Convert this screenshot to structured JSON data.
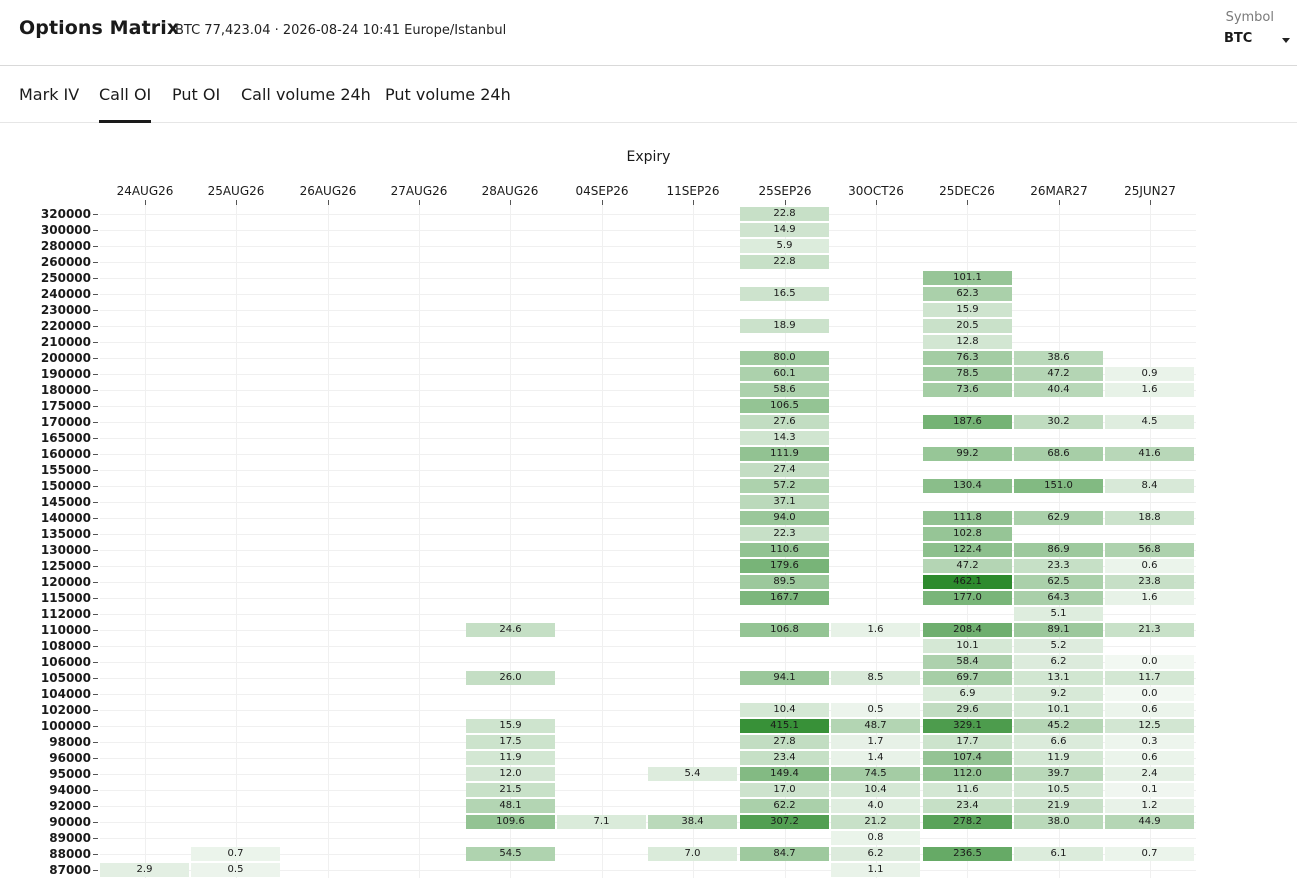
{
  "header": {
    "title": "Options Matrix",
    "subtitle": "BTC 77,423.04 · 2026-08-24 10:41 Europe/Istanbul",
    "symbol_label": "Symbol",
    "symbol_value": "BTC"
  },
  "tabs": [
    {
      "label": "Mark IV",
      "active": false
    },
    {
      "label": "Call OI",
      "active": true
    },
    {
      "label": "Put OI",
      "active": false
    },
    {
      "label": "Call volume 24h",
      "active": false
    },
    {
      "label": "Put volume 24h",
      "active": false
    }
  ],
  "chart_data": {
    "type": "heatmap",
    "xlabel": "Expiry",
    "x": [
      "24AUG26",
      "25AUG26",
      "26AUG26",
      "27AUG26",
      "28AUG26",
      "04SEP26",
      "11SEP26",
      "25SEP26",
      "30OCT26",
      "25DEC26",
      "26MAR27",
      "25JUN27"
    ],
    "y": [
      "320000",
      "300000",
      "280000",
      "260000",
      "250000",
      "240000",
      "230000",
      "220000",
      "210000",
      "200000",
      "190000",
      "180000",
      "175000",
      "170000",
      "165000",
      "160000",
      "155000",
      "150000",
      "145000",
      "140000",
      "135000",
      "130000",
      "125000",
      "120000",
      "115000",
      "112000",
      "110000",
      "108000",
      "106000",
      "105000",
      "104000",
      "102000",
      "100000",
      "98000",
      "96000",
      "95000",
      "94000",
      "92000",
      "90000",
      "89000",
      "88000",
      "87000"
    ],
    "values": [
      [
        null,
        null,
        null,
        null,
        null,
        null,
        null,
        "22.8",
        null,
        null,
        null,
        null
      ],
      [
        null,
        null,
        null,
        null,
        null,
        null,
        null,
        "14.9",
        null,
        null,
        null,
        null
      ],
      [
        null,
        null,
        null,
        null,
        null,
        null,
        null,
        "5.9",
        null,
        null,
        null,
        null
      ],
      [
        null,
        null,
        null,
        null,
        null,
        null,
        null,
        "22.8",
        null,
        null,
        null,
        null
      ],
      [
        null,
        null,
        null,
        null,
        null,
        null,
        null,
        null,
        null,
        "101.1",
        null,
        null
      ],
      [
        null,
        null,
        null,
        null,
        null,
        null,
        null,
        "16.5",
        null,
        "62.3",
        null,
        null
      ],
      [
        null,
        null,
        null,
        null,
        null,
        null,
        null,
        null,
        null,
        "15.9",
        null,
        null
      ],
      [
        null,
        null,
        null,
        null,
        null,
        null,
        null,
        "18.9",
        null,
        "20.5",
        null,
        null
      ],
      [
        null,
        null,
        null,
        null,
        null,
        null,
        null,
        null,
        null,
        "12.8",
        null,
        null
      ],
      [
        null,
        null,
        null,
        null,
        null,
        null,
        null,
        "80.0",
        null,
        "76.3",
        "38.6",
        null
      ],
      [
        null,
        null,
        null,
        null,
        null,
        null,
        null,
        "60.1",
        null,
        "78.5",
        "47.2",
        "0.9"
      ],
      [
        null,
        null,
        null,
        null,
        null,
        null,
        null,
        "58.6",
        null,
        "73.6",
        "40.4",
        "1.6"
      ],
      [
        null,
        null,
        null,
        null,
        null,
        null,
        null,
        "106.5",
        null,
        null,
        null,
        null
      ],
      [
        null,
        null,
        null,
        null,
        null,
        null,
        null,
        "27.6",
        null,
        "187.6",
        "30.2",
        "4.5"
      ],
      [
        null,
        null,
        null,
        null,
        null,
        null,
        null,
        "14.3",
        null,
        null,
        null,
        null
      ],
      [
        null,
        null,
        null,
        null,
        null,
        null,
        null,
        "111.9",
        null,
        "99.2",
        "68.6",
        "41.6"
      ],
      [
        null,
        null,
        null,
        null,
        null,
        null,
        null,
        "27.4",
        null,
        null,
        null,
        null
      ],
      [
        null,
        null,
        null,
        null,
        null,
        null,
        null,
        "57.2",
        null,
        "130.4",
        "151.0",
        "8.4"
      ],
      [
        null,
        null,
        null,
        null,
        null,
        null,
        null,
        "37.1",
        null,
        null,
        null,
        null
      ],
      [
        null,
        null,
        null,
        null,
        null,
        null,
        null,
        "94.0",
        null,
        "111.8",
        "62.9",
        "18.8"
      ],
      [
        null,
        null,
        null,
        null,
        null,
        null,
        null,
        "22.3",
        null,
        "102.8",
        null,
        null
      ],
      [
        null,
        null,
        null,
        null,
        null,
        null,
        null,
        "110.6",
        null,
        "122.4",
        "86.9",
        "56.8"
      ],
      [
        null,
        null,
        null,
        null,
        null,
        null,
        null,
        "179.6",
        null,
        "47.2",
        "23.3",
        "0.6"
      ],
      [
        null,
        null,
        null,
        null,
        null,
        null,
        null,
        "89.5",
        null,
        "462.1",
        "62.5",
        "23.8"
      ],
      [
        null,
        null,
        null,
        null,
        null,
        null,
        null,
        "167.7",
        null,
        "177.0",
        "64.3",
        "1.6"
      ],
      [
        null,
        null,
        null,
        null,
        null,
        null,
        null,
        null,
        null,
        null,
        "5.1",
        null
      ],
      [
        null,
        null,
        null,
        null,
        "24.6",
        null,
        null,
        "106.8",
        "1.6",
        "208.4",
        "89.1",
        "21.3"
      ],
      [
        null,
        null,
        null,
        null,
        null,
        null,
        null,
        null,
        null,
        "10.1",
        "5.2",
        null
      ],
      [
        null,
        null,
        null,
        null,
        null,
        null,
        null,
        null,
        null,
        "58.4",
        "6.2",
        "0.0"
      ],
      [
        null,
        null,
        null,
        null,
        "26.0",
        null,
        null,
        "94.1",
        "8.5",
        "69.7",
        "13.1",
        "11.7"
      ],
      [
        null,
        null,
        null,
        null,
        null,
        null,
        null,
        null,
        null,
        "6.9",
        "9.2",
        "0.0"
      ],
      [
        null,
        null,
        null,
        null,
        null,
        null,
        null,
        "10.4",
        "0.5",
        "29.6",
        "10.1",
        "0.6"
      ],
      [
        null,
        null,
        null,
        null,
        "15.9",
        null,
        null,
        "415.1",
        "48.7",
        "329.1",
        "45.2",
        "12.5"
      ],
      [
        null,
        null,
        null,
        null,
        "17.5",
        null,
        null,
        "27.8",
        "1.7",
        "17.7",
        "6.6",
        "0.3"
      ],
      [
        null,
        null,
        null,
        null,
        "11.9",
        null,
        null,
        "23.4",
        "1.4",
        "107.4",
        "11.9",
        "0.6"
      ],
      [
        null,
        null,
        null,
        null,
        "12.0",
        null,
        "5.4",
        "149.4",
        "74.5",
        "112.0",
        "39.7",
        "2.4"
      ],
      [
        null,
        null,
        null,
        null,
        "21.5",
        null,
        null,
        "17.0",
        "10.4",
        "11.6",
        "10.5",
        "0.1"
      ],
      [
        null,
        null,
        null,
        null,
        "48.1",
        null,
        null,
        "62.2",
        "4.0",
        "23.4",
        "21.9",
        "1.2"
      ],
      [
        null,
        null,
        null,
        null,
        "109.6",
        "7.1",
        "38.4",
        "307.2",
        "21.2",
        "278.2",
        "38.0",
        "44.9"
      ],
      [
        null,
        null,
        null,
        null,
        null,
        null,
        null,
        null,
        "0.8",
        null,
        null,
        null
      ],
      [
        null,
        "0.7",
        null,
        null,
        "54.5",
        null,
        "7.0",
        "84.7",
        "6.2",
        "236.5",
        "6.1",
        "0.7"
      ],
      [
        "2.9",
        "0.5",
        null,
        null,
        null,
        null,
        null,
        null,
        "1.1",
        null,
        null,
        null
      ]
    ],
    "vmax": 462.1,
    "color_low": "#ffffff",
    "color_high": "#2e8b2e",
    "grid": true
  }
}
